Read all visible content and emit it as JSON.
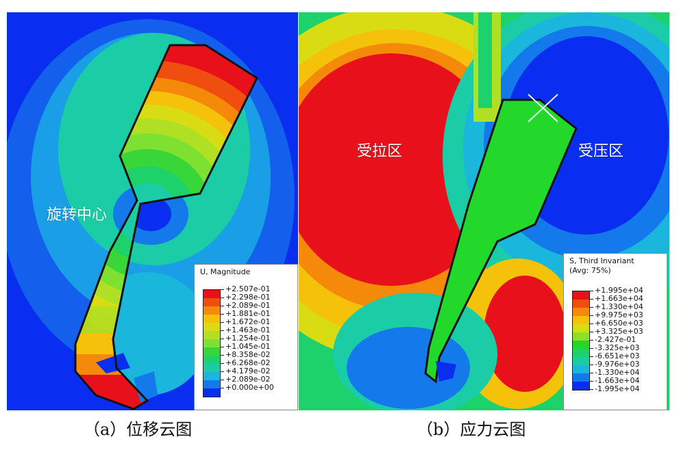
{
  "panel_a": {
    "overlay_label": "旋转中心",
    "legend": {
      "title_lines": [
        "U, Magnitude"
      ],
      "tick_labels": [
        "+2.507e-01",
        "+2.298e-01",
        "+2.089e-01",
        "+1.881e-01",
        "+1.672e-01",
        "+1.463e-01",
        "+1.254e-01",
        "+1.045e-01",
        "+8.358e-02",
        "+6.268e-02",
        "+4.179e-02",
        "+2.089e-02",
        "+0.000e+00"
      ],
      "band_colors": [
        "#e8101a",
        "#f04e0e",
        "#f58a0a",
        "#f4c20a",
        "#d9dc12",
        "#b0e024",
        "#7ee030",
        "#39d63a",
        "#1dd26a",
        "#1bcda6",
        "#1bb6dc",
        "#1479ea",
        "#0a2ef0"
      ]
    },
    "caption": "（a）位移云图"
  },
  "panel_b": {
    "label_tension": "受拉区",
    "label_compression": "受压区",
    "legend": {
      "title_lines": [
        "S, Third Invariant",
        "(Avg: 75%)"
      ],
      "tick_labels": [
        "+1.995e+04",
        "+1.663e+04",
        "+1.330e+04",
        "+9.975e+03",
        "+6.650e+03",
        "+3.325e+03",
        "-2.427e-01",
        "-3.325e+03",
        "-6.651e+03",
        "-9.976e+03",
        "-1.330e+04",
        "-1.663e+04",
        "-1.995e+04"
      ],
      "band_colors": [
        "#e8101a",
        "#f04e0e",
        "#f58a0a",
        "#f4c20a",
        "#d9dc12",
        "#8ee028",
        "#22d82a",
        "#1dd26a",
        "#1bcda6",
        "#1bb6dc",
        "#1479ea",
        "#0a2ef0"
      ]
    },
    "caption": "（b）应力云图"
  }
}
